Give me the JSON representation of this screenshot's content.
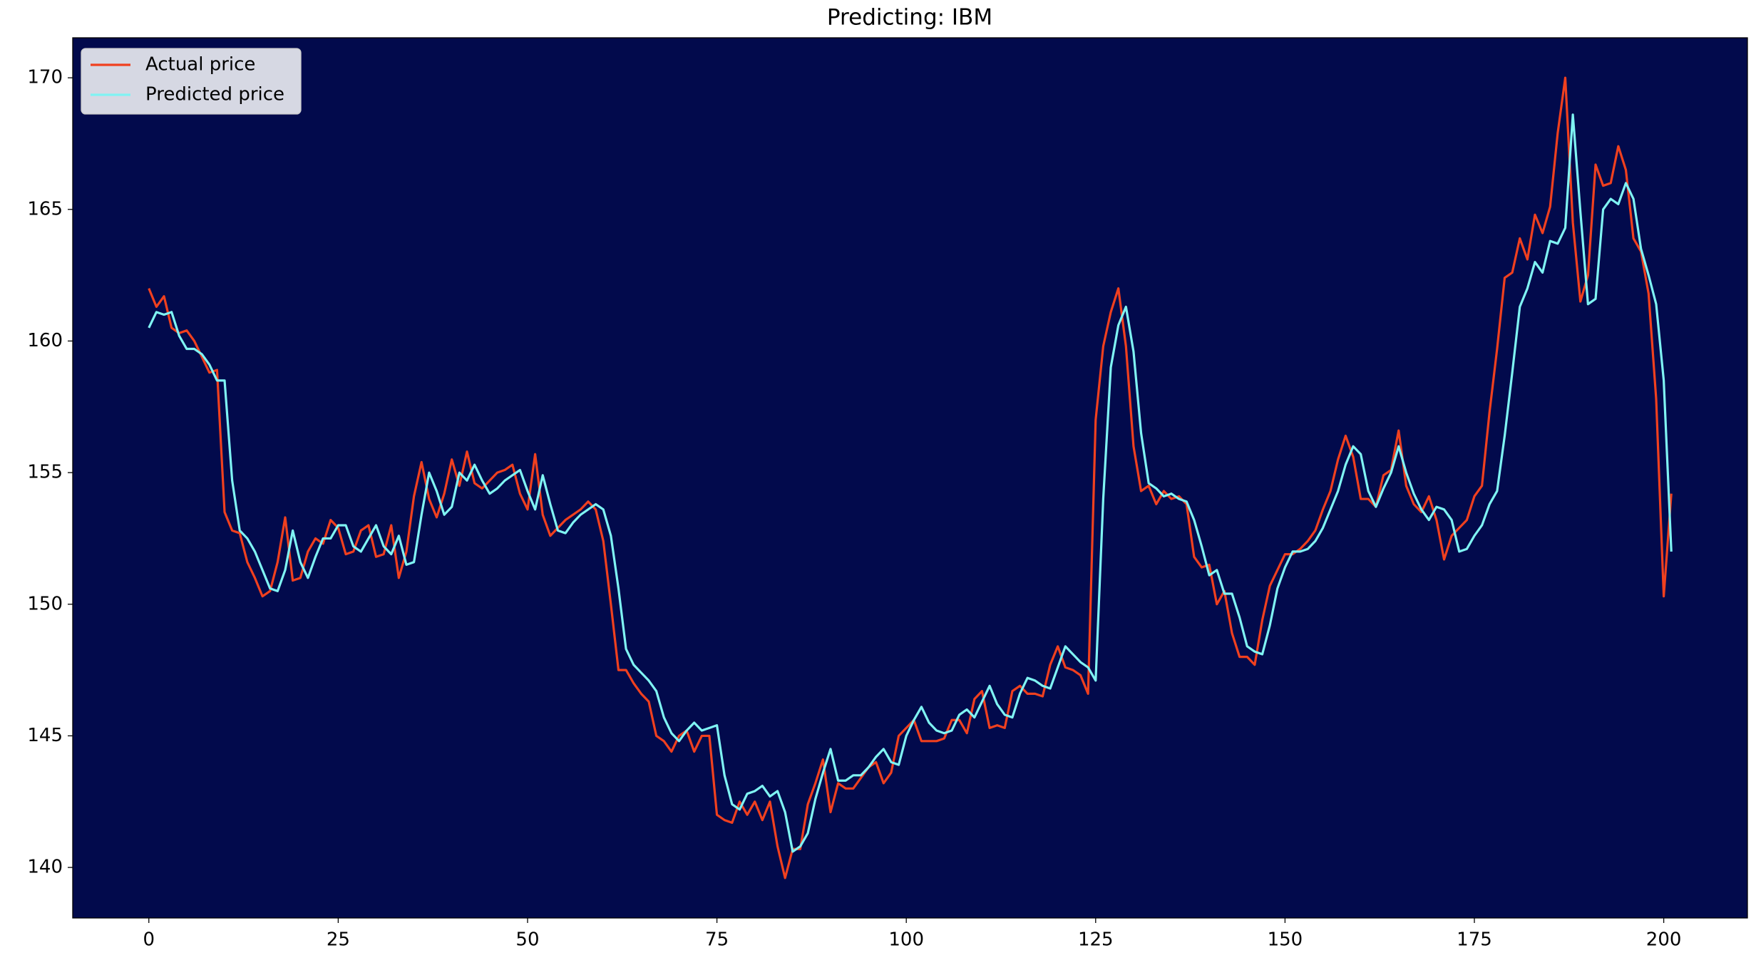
{
  "chart_data": {
    "type": "line",
    "title": "Predicting: IBM",
    "x": [
      0,
      1,
      2,
      3,
      4,
      5,
      6,
      7,
      8,
      9,
      10,
      11,
      12,
      13,
      14,
      15,
      16,
      17,
      18,
      19,
      20,
      21,
      22,
      23,
      24,
      25,
      26,
      27,
      28,
      29,
      30,
      31,
      32,
      33,
      34,
      35,
      36,
      37,
      38,
      39,
      40,
      41,
      42,
      43,
      44,
      45,
      46,
      47,
      48,
      49,
      50,
      51,
      52,
      53,
      54,
      55,
      56,
      57,
      58,
      59,
      60,
      61,
      62,
      63,
      64,
      65,
      66,
      67,
      68,
      69,
      70,
      71,
      72,
      73,
      74,
      75,
      76,
      77,
      78,
      79,
      80,
      81,
      82,
      83,
      84,
      85,
      86,
      87,
      88,
      89,
      90,
      91,
      92,
      93,
      94,
      95,
      96,
      97,
      98,
      99,
      100,
      101,
      102,
      103,
      104,
      105,
      106,
      107,
      108,
      109,
      110,
      111,
      112,
      113,
      114,
      115,
      116,
      117,
      118,
      119,
      120,
      121,
      122,
      123,
      124,
      125,
      126,
      127,
      128,
      129,
      130,
      131,
      132,
      133,
      134,
      135,
      136,
      137,
      138,
      139,
      140,
      141,
      142,
      143,
      144,
      145,
      146,
      147,
      148,
      149,
      150,
      151,
      152,
      153,
      154,
      155,
      156,
      157,
      158,
      159,
      160,
      161,
      162,
      163,
      164,
      165,
      166,
      167,
      168,
      169,
      170,
      171,
      172,
      173,
      174,
      175,
      176,
      177,
      178,
      179,
      180,
      181,
      182,
      183,
      184,
      185,
      186,
      187,
      188,
      189,
      190,
      191,
      192,
      193,
      194,
      195,
      196,
      197,
      198,
      199,
      200,
      201
    ],
    "series": [
      {
        "name": "Actual price",
        "color": "#f0401f",
        "values": [
          162.0,
          161.3,
          161.7,
          160.5,
          160.3,
          160.4,
          160.0,
          159.4,
          158.8,
          158.9,
          153.5,
          152.8,
          152.7,
          151.6,
          151.0,
          150.3,
          150.5,
          151.6,
          153.3,
          150.9,
          151.0,
          152.0,
          152.5,
          152.3,
          153.2,
          152.9,
          151.9,
          152.0,
          152.8,
          153.0,
          151.8,
          151.9,
          153.0,
          151.0,
          152.0,
          154.1,
          155.4,
          154.0,
          153.3,
          154.2,
          155.5,
          154.5,
          155.8,
          154.6,
          154.4,
          154.7,
          155.0,
          155.1,
          155.3,
          154.2,
          153.6,
          155.7,
          153.4,
          152.6,
          152.9,
          153.2,
          153.4,
          153.6,
          153.9,
          153.6,
          152.4,
          150.0,
          147.5,
          147.5,
          147.0,
          146.6,
          146.3,
          145.0,
          144.8,
          144.4,
          145.0,
          145.2,
          144.4,
          145.0,
          145.0,
          142.0,
          141.8,
          141.7,
          142.5,
          142.0,
          142.5,
          141.8,
          142.5,
          140.8,
          139.6,
          140.7,
          140.7,
          142.4,
          143.2,
          144.1,
          142.1,
          143.2,
          143.0,
          143.0,
          143.4,
          143.8,
          144.0,
          143.2,
          143.6,
          145.0,
          145.3,
          145.6,
          144.8,
          144.8,
          144.8,
          144.9,
          145.6,
          145.6,
          145.1,
          146.4,
          146.7,
          145.3,
          145.4,
          145.3,
          146.7,
          146.9,
          146.6,
          146.6,
          146.5,
          147.7,
          148.4,
          147.6,
          147.5,
          147.3,
          146.6,
          157.0,
          159.8,
          161.1,
          162.0,
          159.8,
          156.0,
          154.3,
          154.5,
          153.8,
          154.3,
          154.0,
          154.1,
          153.8,
          151.8,
          151.4,
          151.5,
          150.0,
          150.5,
          148.9,
          148.0,
          148.0,
          147.7,
          149.4,
          150.7,
          151.3,
          151.9,
          151.9,
          152.1,
          152.4,
          152.8,
          153.6,
          154.3,
          155.5,
          156.4,
          155.6,
          154.0,
          154.0,
          153.7,
          154.9,
          155.1,
          156.6,
          154.5,
          153.8,
          153.5,
          154.1,
          153.2,
          151.7,
          152.6,
          152.9,
          153.2,
          154.1,
          154.5,
          157.3,
          159.7,
          162.4,
          162.6,
          163.9,
          163.1,
          164.8,
          164.1,
          165.1,
          167.9,
          170.0,
          164.5,
          161.5,
          162.5,
          166.7,
          165.9,
          166.0,
          167.4,
          166.5,
          163.9,
          163.4,
          161.8,
          157.8,
          150.3,
          154.2
        ]
      },
      {
        "name": "Predicted price",
        "color": "#7ff3f3",
        "values": [
          160.5,
          161.1,
          161.0,
          161.1,
          160.2,
          159.7,
          159.7,
          159.5,
          159.1,
          158.5,
          158.5,
          154.7,
          152.8,
          152.5,
          152.0,
          151.3,
          150.6,
          150.5,
          151.3,
          152.8,
          151.6,
          151.0,
          151.8,
          152.5,
          152.5,
          153.0,
          153.0,
          152.2,
          152.0,
          152.5,
          153.0,
          152.2,
          151.9,
          152.6,
          151.5,
          151.6,
          153.4,
          155.0,
          154.3,
          153.4,
          153.7,
          155.0,
          154.7,
          155.3,
          154.7,
          154.2,
          154.4,
          154.7,
          154.9,
          155.1,
          154.3,
          153.6,
          154.9,
          153.8,
          152.8,
          152.7,
          153.1,
          153.4,
          153.6,
          153.8,
          153.6,
          152.6,
          150.6,
          148.3,
          147.7,
          147.4,
          147.1,
          146.7,
          145.7,
          145.1,
          144.8,
          145.2,
          145.5,
          145.2,
          145.3,
          145.4,
          143.5,
          142.4,
          142.2,
          142.8,
          142.9,
          143.1,
          142.7,
          142.9,
          142.1,
          140.6,
          140.8,
          141.3,
          142.6,
          143.6,
          144.5,
          143.3,
          143.3,
          143.5,
          143.5,
          143.8,
          144.2,
          144.5,
          144.0,
          143.9,
          145.0,
          145.6,
          146.1,
          145.5,
          145.2,
          145.1,
          145.2,
          145.8,
          146.0,
          145.7,
          146.3,
          146.9,
          146.2,
          145.8,
          145.7,
          146.6,
          147.2,
          147.1,
          146.9,
          146.8,
          147.6,
          148.4,
          148.1,
          147.8,
          147.6,
          147.1,
          154.0,
          159.0,
          160.6,
          161.3,
          159.6,
          156.5,
          154.6,
          154.4,
          154.1,
          154.2,
          154.0,
          153.9,
          153.2,
          152.2,
          151.1,
          151.3,
          150.4,
          150.4,
          149.5,
          148.4,
          148.2,
          148.1,
          149.2,
          150.6,
          151.4,
          152.0,
          152.0,
          152.1,
          152.4,
          152.9,
          153.6,
          154.3,
          155.3,
          156.0,
          155.7,
          154.3,
          153.7,
          154.4,
          155.0,
          156.0,
          155.0,
          154.2,
          153.6,
          153.2,
          153.7,
          153.6,
          153.2,
          152.0,
          152.1,
          152.6,
          153.0,
          153.8,
          154.3,
          156.4,
          158.8,
          161.3,
          162.0,
          163.0,
          162.6,
          163.8,
          163.7,
          164.3,
          168.6,
          164.9,
          161.4,
          161.6,
          165.0,
          165.4,
          165.2,
          166.0,
          165.4,
          163.5,
          162.5,
          161.4,
          158.5,
          152.0
        ]
      }
    ],
    "xlim": [
      -10.05,
      211.05
    ],
    "xticks": [
      0,
      25,
      50,
      75,
      100,
      125,
      150,
      175,
      200
    ],
    "ylim": [
      138.08,
      171.52
    ],
    "yticks": [
      140,
      145,
      150,
      155,
      160,
      165,
      170
    ],
    "grid": false,
    "legend": "upper left",
    "background": "#020a4c"
  }
}
